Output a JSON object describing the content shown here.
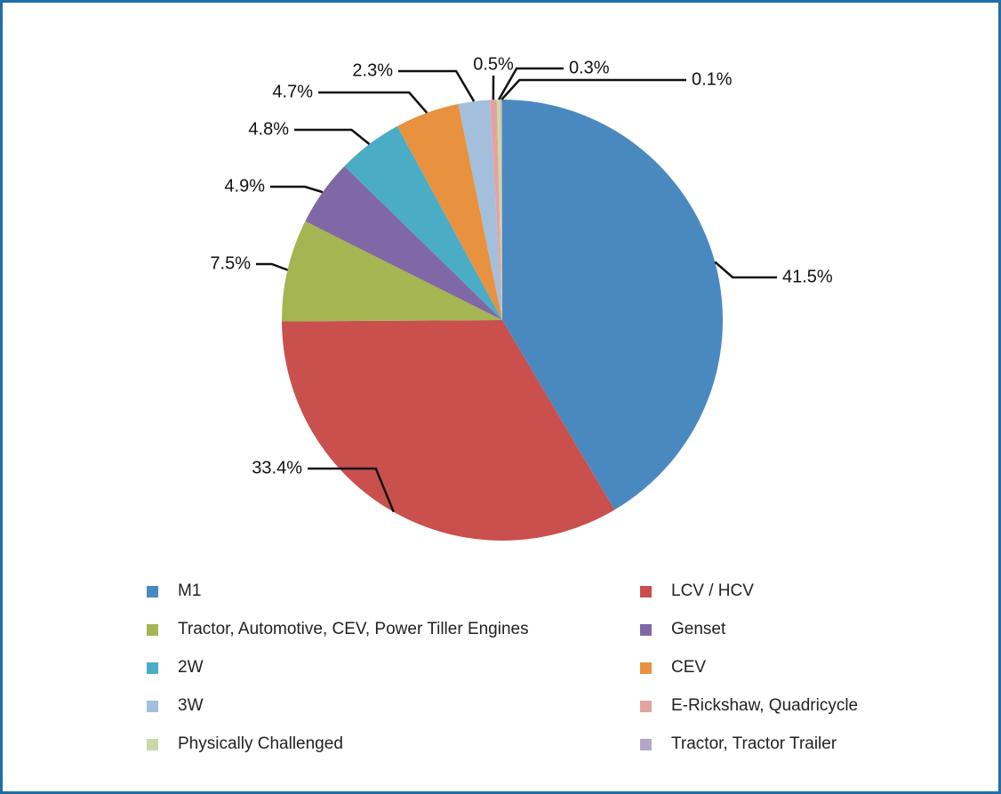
{
  "chart_data": {
    "type": "pie",
    "categories": [
      "M1",
      "LCV / HCV",
      "Tractor, Automotive, CEV, Power Tiller Engines",
      "Genset",
      "2W",
      "CEV",
      "3W",
      "E-Rickshaw, Quadricycle",
      "Physically Challenged",
      "Tractor, Tractor Trailer"
    ],
    "values": [
      41.5,
      33.4,
      7.5,
      4.9,
      4.8,
      4.7,
      2.3,
      0.5,
      0.3,
      0.1
    ],
    "value_labels": [
      "41.5%",
      "33.4%",
      "7.5%",
      "4.9%",
      "4.8%",
      "4.7%",
      "2.3%",
      "0.5%",
      "0.3%",
      "0.1%"
    ],
    "colors": [
      "#4a89c0",
      "#c9504c",
      "#a5b552",
      "#8068a6",
      "#4bacc6",
      "#e8913f",
      "#a3bfdc",
      "#e3a3a0",
      "#cbd8a8",
      "#b3a6c9"
    ],
    "legend": "bottom"
  }
}
